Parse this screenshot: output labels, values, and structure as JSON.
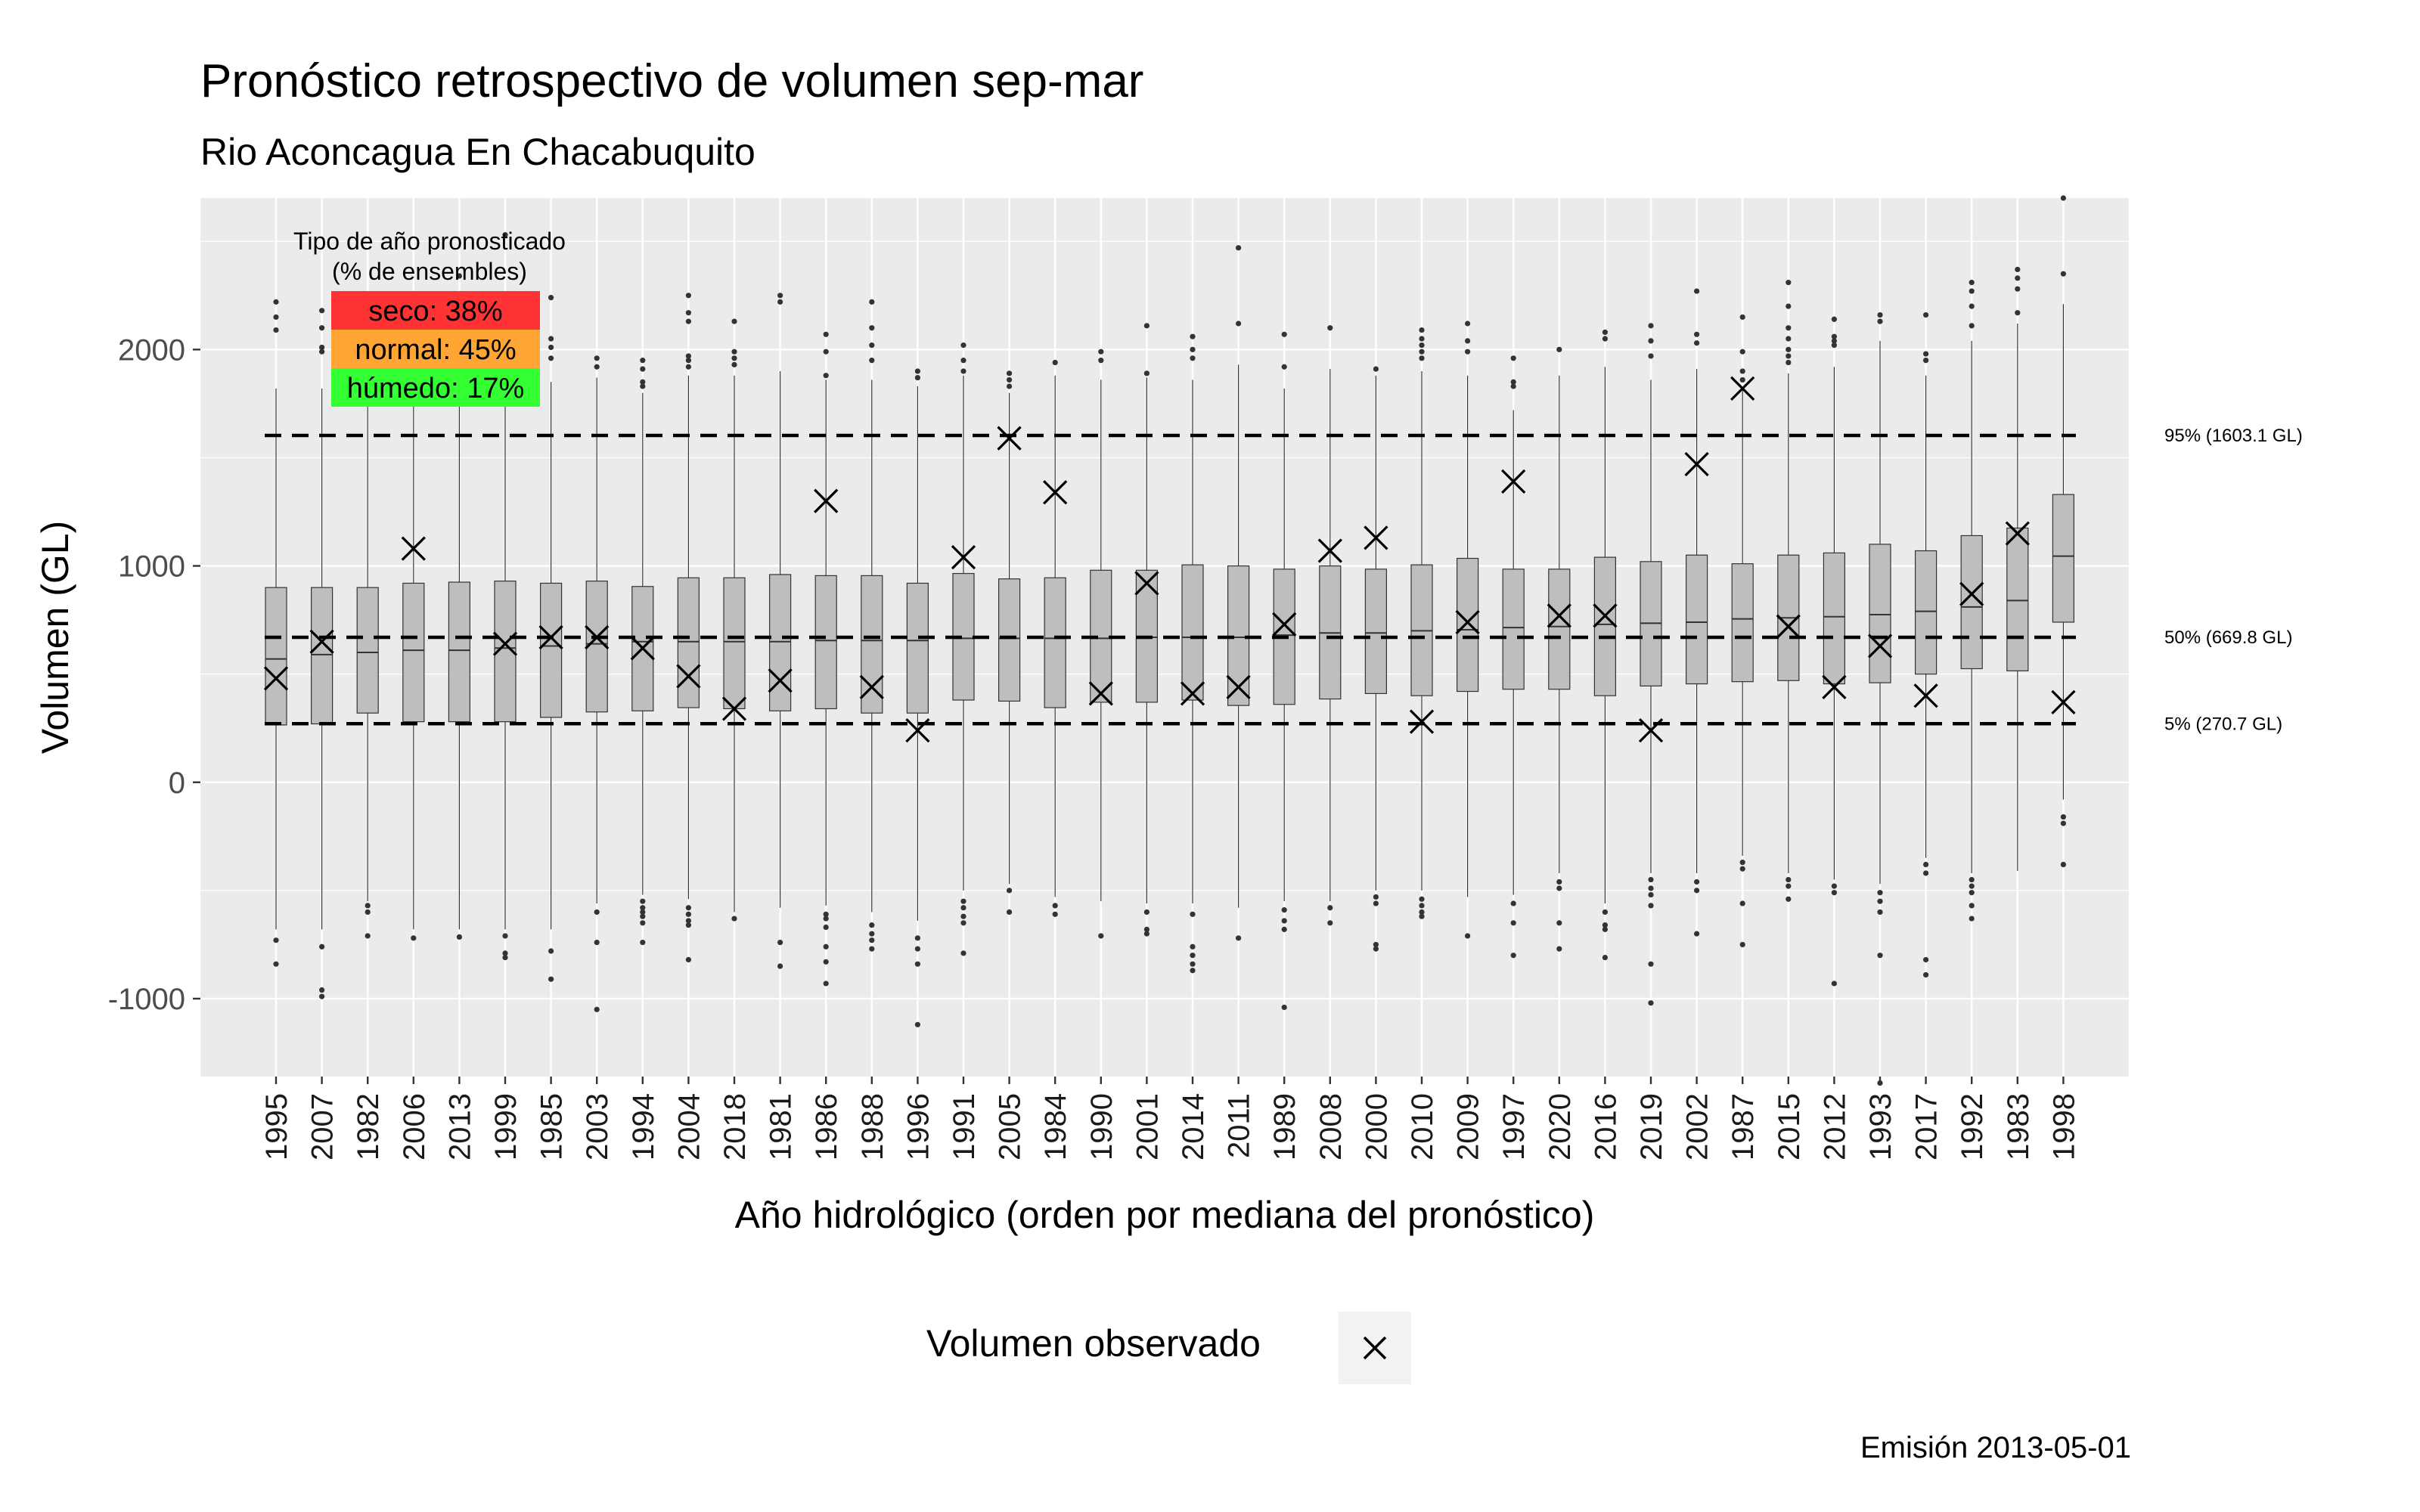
{
  "title": "Pronóstico retrospectivo de volumen sep-mar",
  "subtitle": "Rio Aconcagua En Chacabuquito",
  "caption": "Emisión 2013-05-01",
  "legend": {
    "title": "Volumen observado",
    "symbol": "×"
  },
  "inset": {
    "title_line1": "Tipo de año pronosticado",
    "title_line2": "(% de ensembles)",
    "rows": [
      {
        "label": "seco: 38%",
        "color": "#ff3333"
      },
      {
        "label": "normal: 45%",
        "color": "#ffa533"
      },
      {
        "label": "húmedo: 17%",
        "color": "#33ff33"
      }
    ]
  },
  "colors": {
    "panel": "#ebebeb",
    "grid": "#ffffff",
    "box_fill": "#bebebe",
    "box_line": "#333333",
    "highlight_tick": "#ff0000"
  },
  "chart_data": {
    "type": "boxplot",
    "xlabel": "Año hidrológico (orden por mediana del pronóstico)",
    "ylabel": "Volumen (GL)",
    "ylim": [
      -1360,
      2700
    ],
    "yticks": [
      -1000,
      0,
      1000,
      2000
    ],
    "grid": true,
    "highlight_category": "2013",
    "categories": [
      "1995",
      "2007",
      "1982",
      "2006",
      "2013",
      "1999",
      "1985",
      "2003",
      "1994",
      "2004",
      "2018",
      "1981",
      "1986",
      "1988",
      "1996",
      "1991",
      "2005",
      "1984",
      "1990",
      "2001",
      "2014",
      "2011",
      "1989",
      "2008",
      "2000",
      "2010",
      "2009",
      "1997",
      "2020",
      "2016",
      "2019",
      "2002",
      "1987",
      "2015",
      "2012",
      "1993",
      "2017",
      "1992",
      "1983",
      "1998"
    ],
    "reference_lines": [
      {
        "label": "95% (1603.1 GL)",
        "value": 1603.1
      },
      {
        "label": "50% (669.8 GL)",
        "value": 669.8
      },
      {
        "label": "5% (270.7 GL)",
        "value": 270.7
      }
    ],
    "boxes": [
      {
        "q1": 265,
        "med": 570,
        "q3": 900,
        "wlo": -680,
        "whi": 1820,
        "out_lo": [
          -730,
          -840
        ],
        "out_hi": [
          2090,
          2150,
          2220
        ]
      },
      {
        "q1": 270,
        "med": 590,
        "q3": 900,
        "wlo": -680,
        "whi": 1820,
        "out_lo": [
          -760,
          -960,
          -990
        ],
        "out_hi": [
          1990,
          2010,
          2100,
          2180
        ]
      },
      {
        "q1": 320,
        "med": 600,
        "q3": 900,
        "wlo": -550,
        "whi": 1820,
        "out_lo": [
          -570,
          -600,
          -710
        ],
        "out_hi": []
      },
      {
        "q1": 280,
        "med": 610,
        "q3": 920,
        "wlo": -680,
        "whi": 1820,
        "out_lo": [
          -720
        ],
        "out_hi": []
      },
      {
        "q1": 280,
        "med": 610,
        "q3": 925,
        "wlo": -680,
        "whi": 1820,
        "out_lo": [
          -715
        ],
        "out_hi": [
          2340
        ]
      },
      {
        "q1": 280,
        "med": 620,
        "q3": 930,
        "wlo": -680,
        "whi": 1820,
        "out_lo": [
          -710,
          -790,
          -810
        ],
        "out_hi": [
          2530
        ]
      },
      {
        "q1": 300,
        "med": 630,
        "q3": 920,
        "wlo": -680,
        "whi": 1850,
        "out_lo": [
          -780,
          -910
        ],
        "out_hi": [
          1960,
          2010,
          2050,
          2240
        ]
      },
      {
        "q1": 325,
        "med": 640,
        "q3": 930,
        "wlo": -560,
        "whi": 1870,
        "out_lo": [
          -600,
          -740,
          -1050
        ],
        "out_hi": [
          1920,
          1960
        ]
      },
      {
        "q1": 330,
        "med": 650,
        "q3": 905,
        "wlo": -520,
        "whi": 1800,
        "out_lo": [
          -550,
          -580,
          -600,
          -620,
          -650,
          -740
        ],
        "out_hi": [
          1830,
          1850,
          1910,
          1950
        ]
      },
      {
        "q1": 345,
        "med": 650,
        "q3": 945,
        "wlo": -540,
        "whi": 1880,
        "out_lo": [
          -580,
          -610,
          -640,
          -660,
          -820
        ],
        "out_hi": [
          1920,
          1950,
          1970,
          2130,
          2170,
          2250
        ]
      },
      {
        "q1": 340,
        "med": 650,
        "q3": 945,
        "wlo": -600,
        "whi": 1880,
        "out_lo": [
          -630
        ],
        "out_hi": [
          1930,
          1960,
          1990,
          2130
        ]
      },
      {
        "q1": 330,
        "med": 650,
        "q3": 960,
        "wlo": -580,
        "whi": 1900,
        "out_lo": [
          -740,
          -850
        ],
        "out_hi": [
          2220,
          2250
        ]
      },
      {
        "q1": 340,
        "med": 655,
        "q3": 955,
        "wlo": -570,
        "whi": 1860,
        "out_lo": [
          -610,
          -630,
          -670,
          -760,
          -830,
          -930
        ],
        "out_hi": [
          1880,
          1990,
          2070
        ]
      },
      {
        "q1": 320,
        "med": 655,
        "q3": 955,
        "wlo": -600,
        "whi": 1860,
        "out_lo": [
          -660,
          -700,
          -730,
          -770
        ],
        "out_hi": [
          1950,
          2020,
          2100,
          2220
        ]
      },
      {
        "q1": 320,
        "med": 655,
        "q3": 920,
        "wlo": -640,
        "whi": 1830,
        "out_lo": [
          -720,
          -770,
          -840,
          -1120
        ],
        "out_hi": [
          1870,
          1900
        ]
      },
      {
        "q1": 380,
        "med": 665,
        "q3": 965,
        "wlo": -500,
        "whi": 1880,
        "out_lo": [
          -550,
          -580,
          -620,
          -650,
          -790
        ],
        "out_hi": [
          1900,
          1950,
          2020
        ]
      },
      {
        "q1": 375,
        "med": 665,
        "q3": 940,
        "wlo": -470,
        "whi": 1800,
        "out_lo": [
          -500,
          -600
        ],
        "out_hi": [
          1830,
          1860,
          1890
        ]
      },
      {
        "q1": 345,
        "med": 665,
        "q3": 945,
        "wlo": -530,
        "whi": 1880,
        "out_lo": [
          -570,
          -610
        ],
        "out_hi": [
          1940
        ]
      },
      {
        "q1": 370,
        "med": 665,
        "q3": 980,
        "wlo": -550,
        "whi": 1860,
        "out_lo": [
          -710
        ],
        "out_hi": [
          1950,
          1990
        ]
      },
      {
        "q1": 370,
        "med": 670,
        "q3": 980,
        "wlo": -560,
        "whi": 1870,
        "out_lo": [
          -600,
          -680,
          -700
        ],
        "out_hi": [
          1890,
          2110
        ]
      },
      {
        "q1": 380,
        "med": 670,
        "q3": 1005,
        "wlo": -560,
        "whi": 1860,
        "out_lo": [
          -610,
          -760,
          -800,
          -840,
          -870
        ],
        "out_hi": [
          1960,
          2000,
          2060
        ]
      },
      {
        "q1": 355,
        "med": 670,
        "q3": 1000,
        "wlo": -580,
        "whi": 1930,
        "out_lo": [
          -720
        ],
        "out_hi": [
          2120,
          2470
        ]
      },
      {
        "q1": 360,
        "med": 680,
        "q3": 985,
        "wlo": -550,
        "whi": 1820,
        "out_lo": [
          -590,
          -640,
          -680,
          -1040
        ],
        "out_hi": [
          1920,
          2070
        ]
      },
      {
        "q1": 385,
        "med": 690,
        "q3": 1000,
        "wlo": -550,
        "whi": 1910,
        "out_lo": [
          -580,
          -650
        ],
        "out_hi": [
          2100
        ]
      },
      {
        "q1": 410,
        "med": 690,
        "q3": 985,
        "wlo": -500,
        "whi": 1880,
        "out_lo": [
          -530,
          -560,
          -750,
          -770
        ],
        "out_hi": [
          1910
        ]
      },
      {
        "q1": 400,
        "med": 700,
        "q3": 1005,
        "wlo": -500,
        "whi": 1900,
        "out_lo": [
          -540,
          -570,
          -600,
          -620
        ],
        "out_hi": [
          1960,
          1990,
          2020,
          2050,
          2090
        ]
      },
      {
        "q1": 420,
        "med": 705,
        "q3": 1035,
        "wlo": -530,
        "whi": 1880,
        "out_lo": [
          -710
        ],
        "out_hi": [
          1990,
          2040,
          2120
        ]
      },
      {
        "q1": 430,
        "med": 715,
        "q3": 985,
        "wlo": -520,
        "whi": 1720,
        "out_lo": [
          -560,
          -650,
          -800
        ],
        "out_hi": [
          1830,
          1850,
          1960
        ]
      },
      {
        "q1": 430,
        "med": 720,
        "q3": 985,
        "wlo": -420,
        "whi": 1880,
        "out_lo": [
          -460,
          -490,
          -650,
          -770
        ],
        "out_hi": [
          2000
        ]
      },
      {
        "q1": 400,
        "med": 730,
        "q3": 1040,
        "wlo": -560,
        "whi": 1920,
        "out_lo": [
          -600,
          -660,
          -680,
          -810
        ],
        "out_hi": [
          2050,
          2080
        ]
      },
      {
        "q1": 445,
        "med": 735,
        "q3": 1020,
        "wlo": -420,
        "whi": 1860,
        "out_lo": [
          -450,
          -490,
          -520,
          -570,
          -840,
          -1020
        ],
        "out_hi": [
          1970,
          2040,
          2110
        ]
      },
      {
        "q1": 455,
        "med": 740,
        "q3": 1050,
        "wlo": -420,
        "whi": 1910,
        "out_lo": [
          -460,
          -500,
          -700
        ],
        "out_hi": [
          2030,
          2070,
          2270
        ]
      },
      {
        "q1": 465,
        "med": 755,
        "q3": 1010,
        "wlo": -340,
        "whi": 1820,
        "out_lo": [
          -370,
          -400,
          -560,
          -750
        ],
        "out_hi": [
          1860,
          1900,
          1990,
          2150
        ]
      },
      {
        "q1": 470,
        "med": 760,
        "q3": 1050,
        "wlo": -420,
        "whi": 1890,
        "out_lo": [
          -450,
          -480,
          -540
        ],
        "out_hi": [
          1940,
          1970,
          2000,
          2050,
          2100,
          2200,
          2310
        ]
      },
      {
        "q1": 455,
        "med": 765,
        "q3": 1060,
        "wlo": -450,
        "whi": 1920,
        "out_lo": [
          -480,
          -510,
          -930
        ],
        "out_hi": [
          2020,
          2040,
          2060,
          2140
        ]
      },
      {
        "q1": 460,
        "med": 775,
        "q3": 1100,
        "wlo": -470,
        "whi": 2040,
        "out_lo": [
          -510,
          -550,
          -600,
          -800,
          -1390
        ],
        "out_hi": [
          2130,
          2160
        ]
      },
      {
        "q1": 500,
        "med": 790,
        "q3": 1070,
        "wlo": -350,
        "whi": 1880,
        "out_lo": [
          -380,
          -420,
          -820,
          -890
        ],
        "out_hi": [
          1950,
          1980,
          2160
        ]
      },
      {
        "q1": 525,
        "med": 810,
        "q3": 1140,
        "wlo": -420,
        "whi": 2040,
        "out_lo": [
          -450,
          -480,
          -510,
          -570,
          -630
        ],
        "out_hi": [
          2110,
          2200,
          2270,
          2310
        ]
      },
      {
        "q1": 515,
        "med": 840,
        "q3": 1175,
        "wlo": -410,
        "whi": 2120,
        "out_lo": [],
        "out_hi": [
          2170,
          2280,
          2330,
          2370
        ]
      },
      {
        "q1": 740,
        "med": 1045,
        "q3": 1330,
        "wlo": -80,
        "whi": 2210,
        "out_lo": [
          -160,
          -190,
          -380
        ],
        "out_hi": [
          2350,
          2700
        ]
      }
    ],
    "observed": [
      480,
      650,
      null,
      1080,
      null,
      640,
      670,
      670,
      620,
      490,
      340,
      470,
      1300,
      440,
      240,
      1040,
      1590,
      1340,
      410,
      920,
      410,
      440,
      730,
      1070,
      1130,
      280,
      740,
      1390,
      770,
      770,
      240,
      1470,
      1820,
      720,
      440,
      630,
      400,
      870,
      1150,
      370
    ]
  }
}
